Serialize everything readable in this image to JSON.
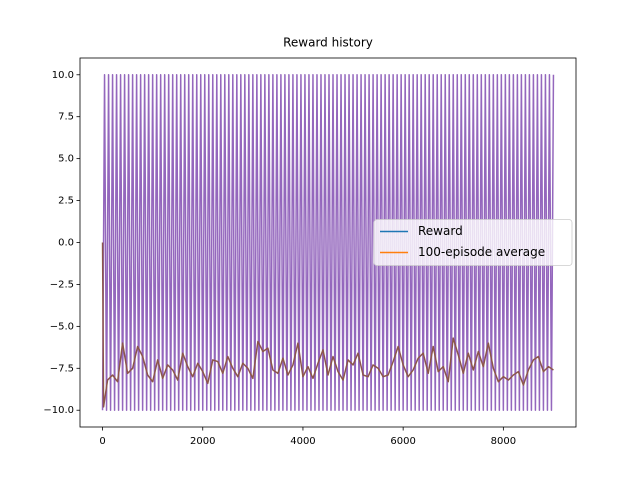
{
  "chart_data": {
    "type": "line",
    "title": "Reward history",
    "xlim": [
      -450,
      9450
    ],
    "xticks": [
      0,
      2000,
      4000,
      6000,
      8000
    ],
    "ylim": [
      -11,
      11
    ],
    "yticks": [
      {
        "value": -10,
        "label": "−10.0"
      },
      {
        "value": -7.5,
        "label": "−7.5"
      },
      {
        "value": -5,
        "label": "−5.0"
      },
      {
        "value": -2.5,
        "label": "−2.5"
      },
      {
        "value": 0,
        "label": "0.0"
      },
      {
        "value": 2.5,
        "label": "2.5"
      },
      {
        "value": 5,
        "label": "5.0"
      },
      {
        "value": 7.5,
        "label": "7.5"
      },
      {
        "value": 10,
        "label": "10.0"
      }
    ],
    "legend": "center right",
    "series": [
      {
        "name": "Reward",
        "color": "#9467bd",
        "legend_color": "#1f77b4",
        "x": [
          0,
          40,
          80,
          120,
          160,
          200,
          240,
          280,
          320,
          360,
          400,
          440,
          480,
          520,
          560,
          600,
          640,
          680,
          720,
          760,
          800,
          840,
          880,
          920,
          960,
          1000,
          1040,
          1080,
          1120,
          1160,
          1200,
          1240,
          1280,
          1320,
          1360,
          1400,
          1440,
          1480,
          1520,
          1560,
          1600,
          1640,
          1680,
          1720,
          1760,
          1800,
          1840,
          1880,
          1920,
          1960,
          2000,
          2040,
          2080,
          2120,
          2160,
          2200,
          2240,
          2280,
          2320,
          2360,
          2400,
          2440,
          2480,
          2520,
          2560,
          2600,
          2640,
          2680,
          2720,
          2760,
          2800,
          2840,
          2880,
          2920,
          2960,
          3000,
          3040,
          3080,
          3120,
          3160,
          3200,
          3240,
          3280,
          3320,
          3360,
          3400,
          3440,
          3480,
          3520,
          3560,
          3600,
          3640,
          3680,
          3720,
          3760,
          3800,
          3840,
          3880,
          3920,
          3960,
          4000,
          4040,
          4080,
          4120,
          4160,
          4200,
          4240,
          4280,
          4320,
          4360,
          4400,
          4440,
          4480,
          4520,
          4560,
          4600,
          4640,
          4680,
          4720,
          4760,
          4800,
          4840,
          4880,
          4920,
          4960,
          5000,
          5040,
          5080,
          5120,
          5160,
          5200,
          5240,
          5280,
          5320,
          5360,
          5400,
          5440,
          5480,
          5520,
          5560,
          5600,
          5640,
          5680,
          5720,
          5760,
          5800,
          5840,
          5880,
          5920,
          5960,
          6000,
          6040,
          6080,
          6120,
          6160,
          6200,
          6240,
          6280,
          6320,
          6360,
          6400,
          6440,
          6480,
          6520,
          6560,
          6600,
          6640,
          6680,
          6720,
          6760,
          6800,
          6840,
          6880,
          6920,
          6960,
          7000,
          7040,
          7080,
          7120,
          7160,
          7200,
          7240,
          7280,
          7320,
          7360,
          7400,
          7440,
          7480,
          7520,
          7560,
          7600,
          7640,
          7680,
          7720,
          7760,
          7800,
          7840,
          7880,
          7920,
          7960,
          8000,
          8040,
          8080,
          8120,
          8160,
          8200,
          8240,
          8280,
          8320,
          8360,
          8400,
          8440,
          8480,
          8520,
          8560,
          8600,
          8640,
          8680,
          8720,
          8760,
          8800,
          8840,
          8880,
          8920,
          8960,
          9000
        ],
        "values": [
          -10,
          10,
          -10,
          10,
          -10,
          10,
          -10,
          10,
          -10,
          10,
          -10,
          10,
          -10,
          10,
          -10,
          10,
          -10,
          10,
          -10,
          10,
          -10,
          10,
          -10,
          10,
          -10,
          10,
          -10,
          10,
          -10,
          10,
          -10,
          10,
          -10,
          10,
          -10,
          10,
          -10,
          10,
          -10,
          10,
          -10,
          10,
          -10,
          10,
          -10,
          10,
          -10,
          10,
          -10,
          10,
          -10,
          10,
          -10,
          10,
          -10,
          10,
          -10,
          10,
          -10,
          10,
          -10,
          10,
          -10,
          10,
          -10,
          10,
          -10,
          10,
          -10,
          10,
          -10,
          10,
          -10,
          10,
          -10,
          10,
          -10,
          10,
          -10,
          10,
          -10,
          10,
          -10,
          10,
          -10,
          10,
          -10,
          10,
          -10,
          10,
          -10,
          10,
          -10,
          10,
          -10,
          10,
          -10,
          10,
          -10,
          10,
          -10,
          10,
          -10,
          10,
          -10,
          10,
          -10,
          10,
          -10,
          10,
          -10,
          10,
          -10,
          10,
          -10,
          10,
          -10,
          10,
          -10,
          10,
          -10,
          10,
          -10,
          10,
          -10,
          10,
          -10,
          10,
          -10,
          10,
          -10,
          10,
          -10,
          10,
          -10,
          10,
          -10,
          10,
          -10,
          10,
          -10,
          10,
          -10,
          10,
          -10,
          10,
          -10,
          10,
          -10,
          10,
          -10,
          10,
          -10,
          10,
          -10,
          10,
          -10,
          10,
          -10,
          10,
          -10,
          10,
          -10,
          10,
          -10,
          10,
          -10,
          10,
          -10,
          10,
          -10,
          10,
          -10,
          10,
          -10,
          10,
          -10,
          10,
          -10,
          10,
          -10,
          10,
          -10,
          10,
          -10,
          10,
          -10,
          10,
          -10,
          10,
          -10,
          10,
          -10,
          10,
          -10,
          10,
          -10,
          10,
          -10,
          10,
          -10,
          10,
          -10,
          10,
          -10,
          10,
          -10,
          10,
          -10,
          10,
          -10,
          10,
          -10,
          10,
          -10,
          10,
          -10,
          10,
          -10,
          10,
          -10,
          10,
          -10,
          10,
          -10,
          10
        ]
      },
      {
        "name": "100-episode average",
        "color": "#8c564b",
        "legend_color": "#ff7f0e",
        "x": [
          0,
          20,
          100,
          200,
          300,
          400,
          500,
          600,
          700,
          800,
          900,
          1000,
          1100,
          1200,
          1300,
          1400,
          1500,
          1600,
          1700,
          1800,
          1900,
          2000,
          2100,
          2200,
          2300,
          2400,
          2500,
          2600,
          2700,
          2800,
          2900,
          3000,
          3100,
          3200,
          3300,
          3400,
          3500,
          3600,
          3700,
          3800,
          3900,
          4000,
          4100,
          4200,
          4300,
          4400,
          4500,
          4600,
          4700,
          4800,
          4900,
          5000,
          5100,
          5200,
          5300,
          5400,
          5500,
          5600,
          5700,
          5800,
          5900,
          6000,
          6100,
          6200,
          6300,
          6400,
          6500,
          6600,
          6700,
          6800,
          6900,
          7000,
          7100,
          7200,
          7300,
          7400,
          7500,
          7600,
          7700,
          7800,
          7900,
          8000,
          8100,
          8200,
          8300,
          8400,
          8500,
          8600,
          8700,
          8800,
          8900,
          9000
        ],
        "values": [
          0,
          -9.8,
          -8.2,
          -7.9,
          -8.3,
          -6.0,
          -7.8,
          -7.5,
          -6.2,
          -6.8,
          -7.9,
          -8.3,
          -7.0,
          -8.1,
          -7.3,
          -7.6,
          -8.2,
          -6.6,
          -7.4,
          -8.0,
          -7.2,
          -7.7,
          -8.4,
          -7.0,
          -7.1,
          -7.8,
          -6.8,
          -7.5,
          -8.0,
          -7.2,
          -7.5,
          -8.1,
          -5.9,
          -6.5,
          -6.3,
          -7.6,
          -7.8,
          -6.9,
          -7.9,
          -7.3,
          -6.0,
          -8.0,
          -7.4,
          -8.1,
          -7.2,
          -6.4,
          -7.9,
          -6.8,
          -7.7,
          -8.2,
          -7.0,
          -7.3,
          -6.6,
          -7.9,
          -8.0,
          -7.3,
          -7.5,
          -8.0,
          -7.9,
          -7.1,
          -6.2,
          -7.3,
          -8.0,
          -7.6,
          -6.9,
          -6.6,
          -7.8,
          -6.2,
          -7.7,
          -7.4,
          -8.3,
          -5.7,
          -6.7,
          -7.8,
          -6.6,
          -7.6,
          -6.5,
          -7.4,
          -6.0,
          -7.5,
          -8.3,
          -8.0,
          -8.2,
          -7.9,
          -7.7,
          -8.5,
          -7.6,
          -7.0,
          -6.8,
          -7.7,
          -7.4,
          -7.6
        ]
      }
    ]
  }
}
